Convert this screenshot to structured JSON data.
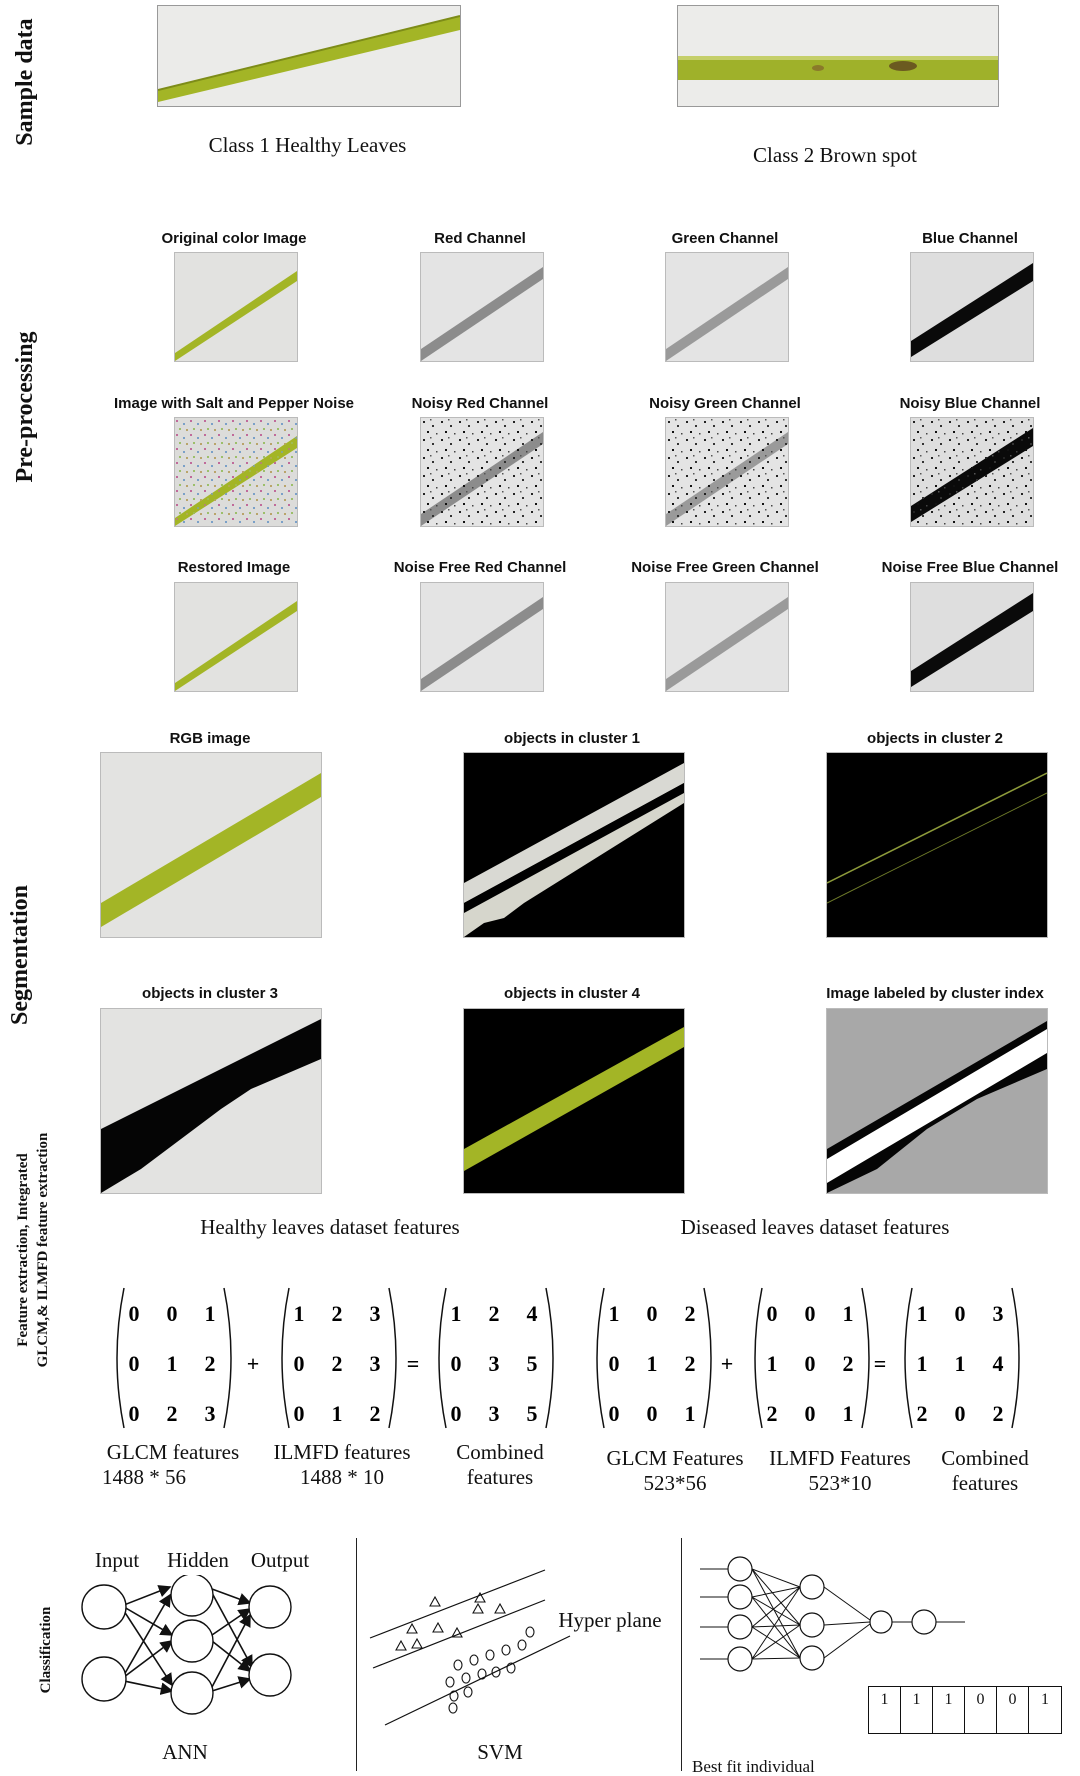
{
  "sections": {
    "sample": "Sample data",
    "preprocessing": "Pre-processing",
    "segmentation": "Segmentation",
    "feature_line1": "Feature extraction,  Integrated",
    "feature_line2": "GLCM,& ILMFD feature extraction",
    "classification": "Classification"
  },
  "sample": {
    "class1": "Class 1 Healthy Leaves",
    "class2": "Class 2 Brown spot"
  },
  "preprocessing": {
    "row1": [
      "Original color Image",
      "Red Channel",
      "Green Channel",
      "Blue Channel"
    ],
    "row2": [
      "Image with Salt and Pepper Noise",
      "Noisy Red Channel",
      "Noisy Green Channel",
      "Noisy Blue Channel"
    ],
    "row3": [
      "Restored Image",
      "Noise Free Red Channel",
      "Noise Free Green Channel",
      "Noise Free Blue Channel"
    ]
  },
  "segmentation": {
    "row1": [
      "RGB image",
      "objects in cluster 1",
      "objects in cluster 2"
    ],
    "row2": [
      "objects in cluster 3",
      "objects in cluster 4",
      "Image labeled by cluster index"
    ]
  },
  "features": {
    "healthy_title": "Healthy leaves dataset features",
    "diseased_title": "Diseased  leaves dataset features",
    "plus": "+",
    "equals": "=",
    "healthy": {
      "glcm": [
        [
          "0",
          "0",
          "1"
        ],
        [
          "0",
          "1",
          "2"
        ],
        [
          "0",
          "2",
          "3"
        ]
      ],
      "ilmfd": [
        [
          "1",
          "2",
          "3"
        ],
        [
          "0",
          "2",
          "3"
        ],
        [
          "0",
          "1",
          "2"
        ]
      ],
      "combined": [
        [
          "1",
          "2",
          "4"
        ],
        [
          "0",
          "3",
          "5"
        ],
        [
          "0",
          "3",
          "5"
        ]
      ],
      "glcm_label": "GLCM features",
      "glcm_dim": "1488 * 56",
      "ilmfd_label": "ILMFD  features",
      "ilmfd_dim": "1488 * 10",
      "combined_label1": "Combined",
      "combined_label2": "features"
    },
    "diseased": {
      "glcm": [
        [
          "1",
          "0",
          "2"
        ],
        [
          "0",
          "1",
          "2"
        ],
        [
          "0",
          "0",
          "1"
        ]
      ],
      "ilmfd": [
        [
          "0",
          "0",
          "1"
        ],
        [
          "1",
          "0",
          "2"
        ],
        [
          "2",
          "0",
          "1"
        ]
      ],
      "combined": [
        [
          "1",
          "0",
          "3"
        ],
        [
          "1",
          "1",
          "4"
        ],
        [
          "2",
          "0",
          "2"
        ]
      ],
      "glcm_label": "GLCM Features",
      "glcm_dim": "523*56",
      "ilmfd_label": "ILMFD Features",
      "ilmfd_dim": "523*10",
      "combined_label1": "Combined",
      "combined_label2": "features"
    }
  },
  "classification": {
    "ann_input": "Input",
    "ann_hidden": "Hidden",
    "ann_output": "Output",
    "ann_name": "ANN",
    "svm_hyperplane": "Hyper plane",
    "svm_name": "SVM",
    "ga_label": "Best fit individual",
    "chromosome": [
      "1",
      "1",
      "1",
      "0",
      "0",
      "1"
    ]
  },
  "colors": {
    "leaf": "#a8b82c",
    "leaf_dark": "#8c9a1e",
    "background_gray": "#d8d8d6"
  }
}
